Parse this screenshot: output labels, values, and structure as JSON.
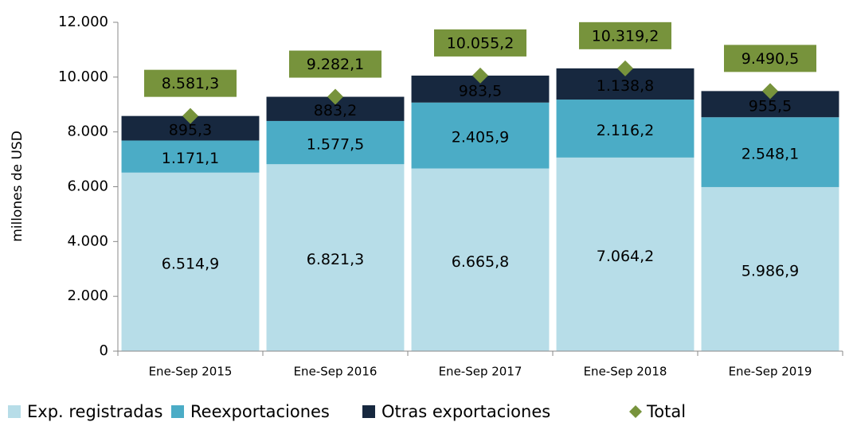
{
  "chart_data": {
    "type": "bar",
    "stacked": true,
    "y_label": "millones de USD",
    "categories": [
      "Ene-Sep 2015",
      "Ene-Sep 2016",
      "Ene-Sep 2017",
      "Ene-Sep 2018",
      "Ene-Sep 2019"
    ],
    "series": [
      {
        "name": "Exp. registradas",
        "color": "#b7dde8",
        "label_color": "#000000",
        "values": [
          6514.9,
          6821.3,
          6665.8,
          7064.2,
          5986.9
        ],
        "value_labels": [
          "6.514,9",
          "6.821,3",
          "6.665,8",
          "7.064,2",
          "5.986,9"
        ]
      },
      {
        "name": "Reexportaciones",
        "color": "#4bacc6",
        "label_color": "#ffffff",
        "values": [
          1171.1,
          1577.5,
          2405.9,
          2116.2,
          2548.1
        ],
        "value_labels": [
          "1.171,1",
          "1.577,5",
          "2.405,9",
          "2.116,2",
          "2.548,1"
        ]
      },
      {
        "name": "Otras exportaciones",
        "color": "#17283f",
        "label_color": "#ffffff",
        "values": [
          895.3,
          883.2,
          983.5,
          1138.8,
          955.5
        ],
        "value_labels": [
          "895,3",
          "883,2",
          "983,5",
          "1.138,8",
          "955,5"
        ]
      },
      {
        "name": "Total",
        "type": "scatter",
        "color": "#77933c",
        "label_color": "#000000",
        "values": [
          8581.3,
          9282.1,
          10055.2,
          10319.2,
          9490.5
        ],
        "value_labels": [
          "8.581,3",
          "9.282,1",
          "10.055,2",
          "10.319,2",
          "9.490,5"
        ]
      }
    ],
    "ylim": [
      0,
      12000
    ],
    "yticks": [
      0,
      {
        "value": 2000,
        "label": "2.000"
      },
      {
        "value": 4000,
        "label": "4.000"
      },
      {
        "value": 6000,
        "label": "6.000"
      },
      {
        "value": 8000,
        "label": "8.000"
      },
      {
        "value": 10000,
        "label": "10.000"
      },
      {
        "value": 12000,
        "label": "12.000"
      }
    ],
    "grid": false,
    "legend": "bottom"
  }
}
